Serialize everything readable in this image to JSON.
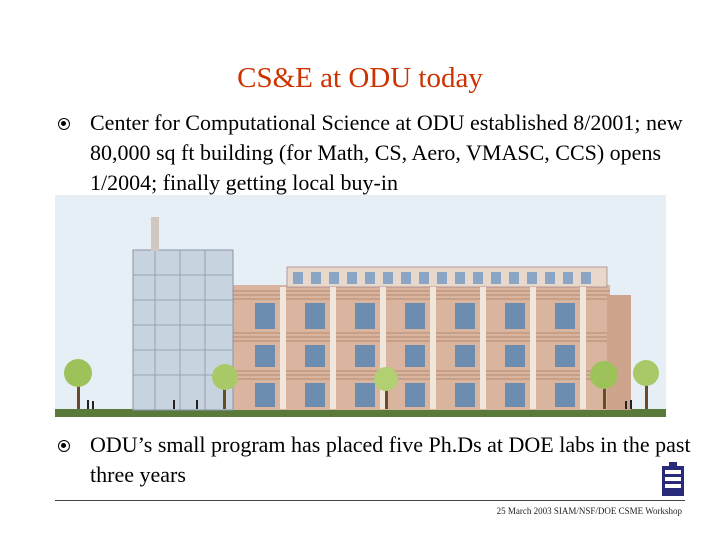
{
  "slide": {
    "title": "CS&E at ODU today",
    "bullets": [
      "Center for Computational Science at ODU established 8/2001; new 80,000 sq ft building (for Math, CS, Aero, VMASC, CCS) opens 1/2004; finally getting local buy-in",
      "ODU’s small program has placed five Ph.Ds at DOE labs in the past three years"
    ],
    "footer": "25 March  2003 SIAM/NSF/DOE CSME Workshop"
  },
  "colors": {
    "title": "#cc3300",
    "sky": "#e6eef6",
    "brick": "#c9957a",
    "ground": "#5a7a3a"
  },
  "icons": {
    "bullet": "bullet-icon",
    "logo": "odu-logo-icon"
  }
}
